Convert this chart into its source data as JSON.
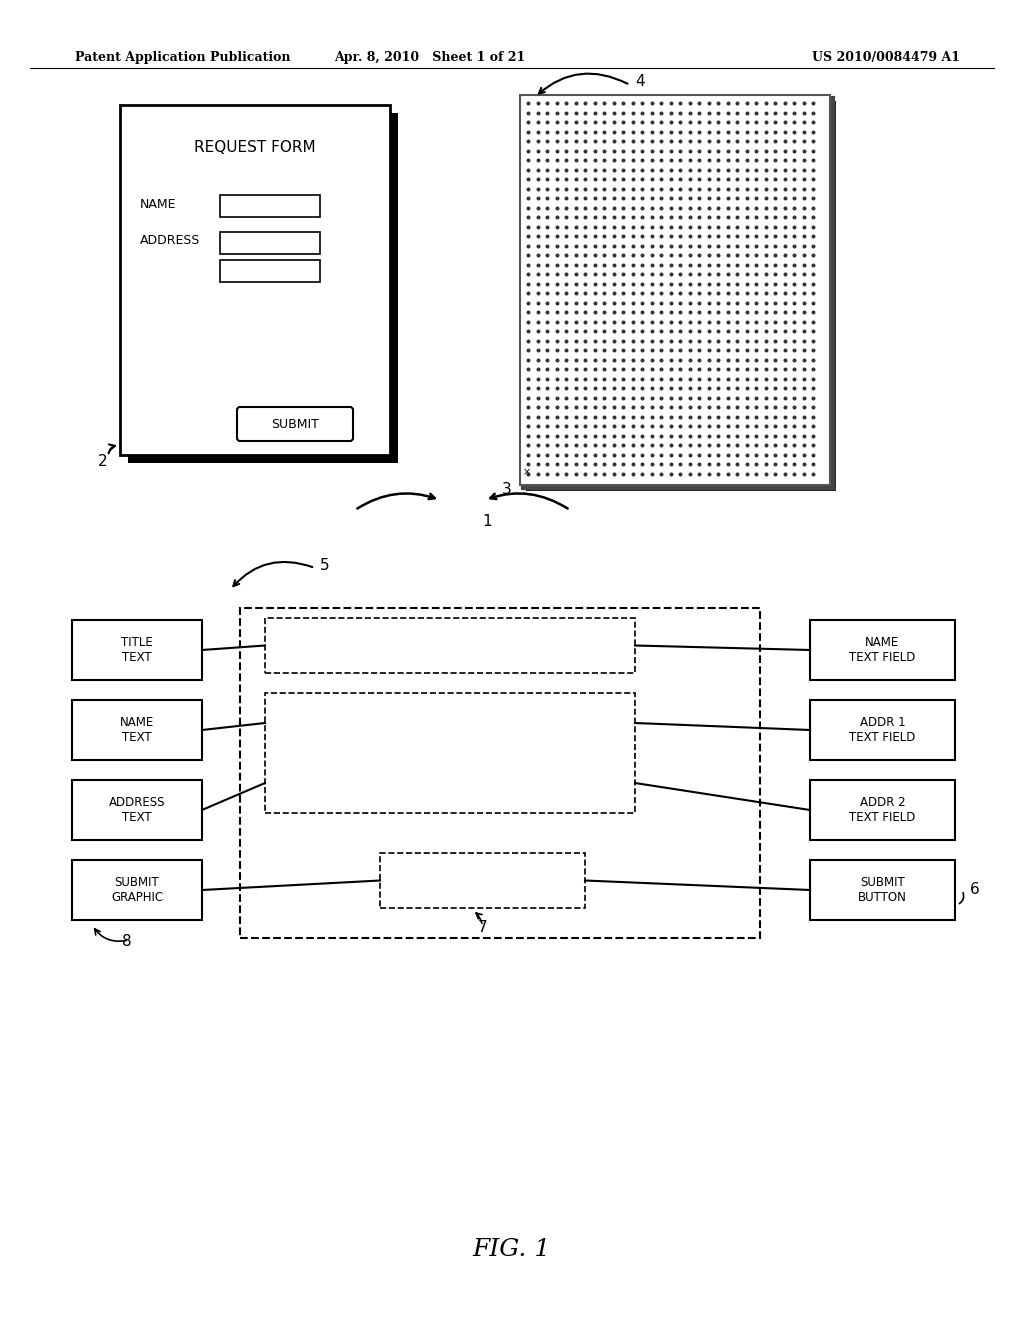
{
  "header_left": "Patent Application Publication",
  "header_mid": "Apr. 8, 2010   Sheet 1 of 21",
  "header_right": "US 2010/0084479 A1",
  "fig_label": "FIG. 1",
  "bg_color": "#ffffff"
}
